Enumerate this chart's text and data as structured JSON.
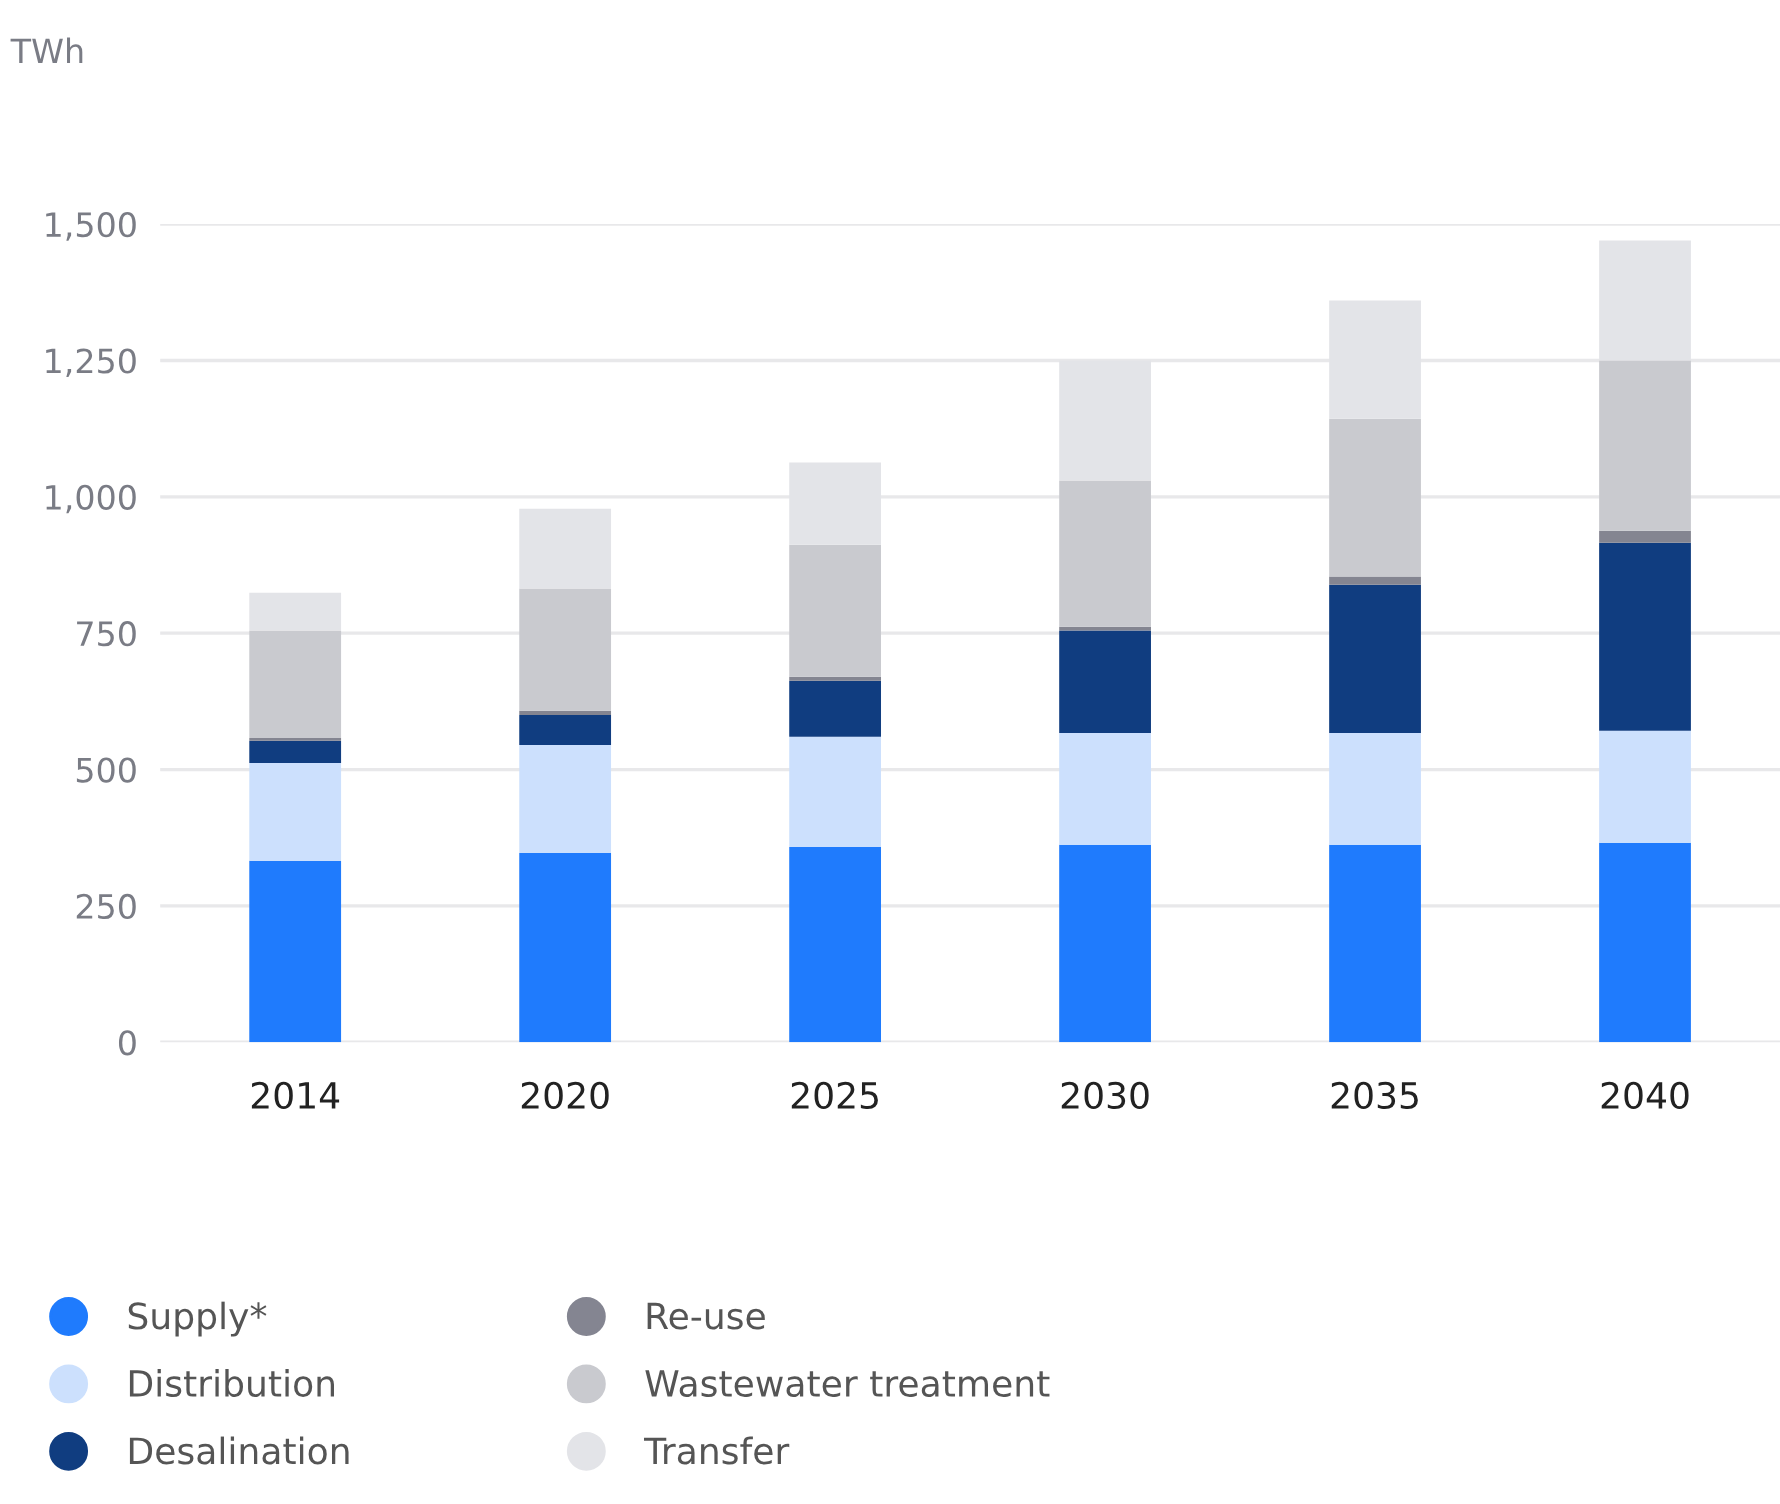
{
  "chart_data": {
    "type": "bar",
    "stacked": true,
    "ylabel": "TWh",
    "categories": [
      "2014",
      "2020",
      "2025",
      "2030",
      "2035",
      "2040"
    ],
    "series": [
      {
        "name": "Supply*",
        "color": "#1f7bfd",
        "values": [
          333,
          347,
          358,
          362,
          362,
          366
        ]
      },
      {
        "name": "Distribution",
        "color": "#cce0fd",
        "values": [
          179,
          198,
          202,
          205,
          205,
          205
        ]
      },
      {
        "name": "Desalination",
        "color": "#103d80",
        "values": [
          41,
          55,
          103,
          188,
          272,
          345
        ]
      },
      {
        "name": "Re-use",
        "color": "#848591",
        "values": [
          5,
          8,
          7,
          7,
          15,
          22
        ]
      },
      {
        "name": "Wastewater treatment",
        "color": "#c9cacf",
        "values": [
          197,
          224,
          242,
          268,
          289,
          312
        ]
      },
      {
        "name": "Transfer",
        "color": "#e3e4e8",
        "values": [
          69,
          146,
          151,
          220,
          217,
          220
        ]
      }
    ],
    "ylim": [
      0,
      1500
    ],
    "yticks": [
      {
        "value": 0,
        "label": "0"
      },
      {
        "value": 250,
        "label": "250"
      },
      {
        "value": 500,
        "label": "500"
      },
      {
        "value": 750,
        "label": "750"
      },
      {
        "value": 1000,
        "label": "1,000"
      },
      {
        "value": 1250,
        "label": "1,250"
      },
      {
        "value": 1500,
        "label": "1,500"
      }
    ],
    "grid": "y",
    "legend": "bottom"
  }
}
